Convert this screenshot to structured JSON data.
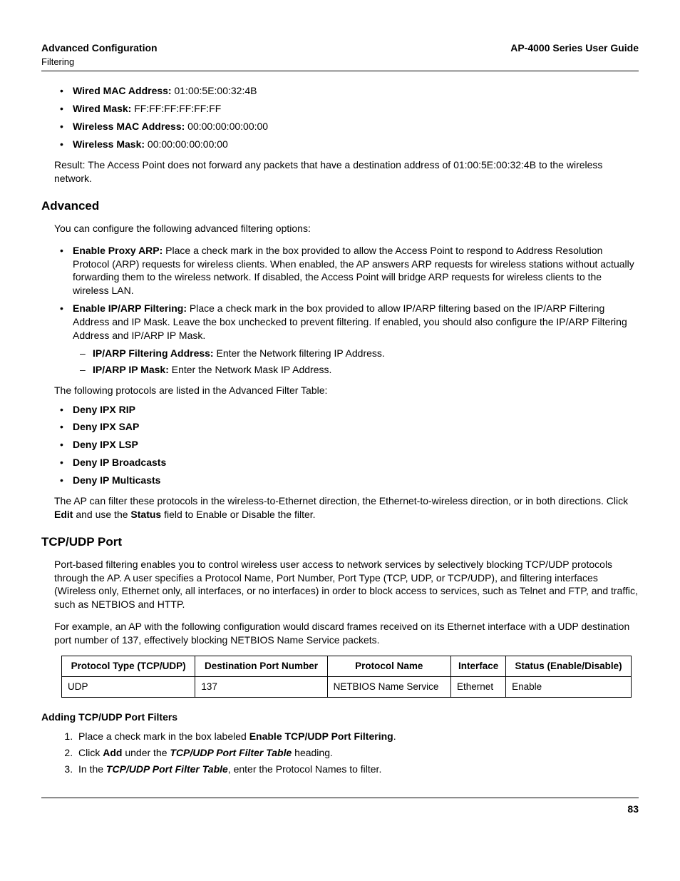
{
  "header": {
    "left_title": "Advanced Configuration",
    "left_sub": "Filtering",
    "right_title": "AP-4000 Series User Guide"
  },
  "mac_list": {
    "wired_mac_label": "Wired MAC Address:",
    "wired_mac_value": " 01:00:5E:00:32:4B",
    "wired_mask_label": "Wired Mask:",
    "wired_mask_value": " FF:FF:FF:FF:FF:FF",
    "wireless_mac_label": "Wireless MAC Address:",
    "wireless_mac_value": " 00:00:00:00:00:00",
    "wireless_mask_label": "Wireless Mask:",
    "wireless_mask_value": " 00:00:00:00:00:00"
  },
  "result_text": "Result: The Access Point does not forward any packets that have a destination address of 01:00:5E:00:32:4B to the wireless network.",
  "advanced": {
    "heading": "Advanced",
    "intro": "You can configure the following advanced filtering options:",
    "proxy_label": "Enable Proxy ARP:",
    "proxy_text": " Place a check mark in the box provided to allow the Access Point to respond to Address Resolution Protocol (ARP) requests for wireless clients. When enabled, the AP answers ARP requests for wireless stations without actually forwarding them to the wireless network. If disabled, the Access Point will bridge ARP requests for wireless clients to the wireless LAN.",
    "iparp_label": "Enable IP/ARP Filtering:",
    "iparp_text": " Place a check mark in the box provided to allow IP/ARP filtering based on the IP/ARP Filtering Address and IP Mask. Leave the box unchecked to prevent filtering. If enabled, you should also configure the IP/ARP Filtering Address and IP/ARP IP Mask.",
    "iparp_addr_label": "IP/ARP Filtering Address:",
    "iparp_addr_text": " Enter the Network filtering IP Address.",
    "iparp_mask_label": "IP/ARP IP Mask:",
    "iparp_mask_text": " Enter the Network Mask IP Address.",
    "table_intro": "The following protocols are listed in the Advanced Filter Table:",
    "deny1": "Deny IPX RIP",
    "deny2": "Deny IPX SAP",
    "deny3": "Deny IPX LSP",
    "deny4": "Deny IP Broadcasts",
    "deny5": "Deny IP Multicasts",
    "filter_p1a": "The AP can filter these protocols in the wireless-to-Ethernet direction, the Ethernet-to-wireless direction, or in both directions. Click ",
    "filter_p1_edit": "Edit",
    "filter_p1b": " and use the ",
    "filter_p1_status": "Status",
    "filter_p1c": " field to Enable or Disable the filter."
  },
  "tcp": {
    "heading": "TCP/UDP Port",
    "p1": "Port-based filtering enables you to control wireless user access to network services by selectively blocking TCP/UDP protocols through the AP. A user specifies a Protocol Name, Port Number, Port Type (TCP, UDP, or TCP/UDP), and filtering interfaces (Wireless only, Ethernet only, all interfaces, or no interfaces) in order to block access to services, such as Telnet and FTP, and traffic, such as NETBIOS and HTTP.",
    "p2": "For example, an AP with the following configuration would discard frames received on its Ethernet interface with a UDP destination port number of 137, effectively blocking NETBIOS Name Service packets.",
    "table": {
      "h1": "Protocol Type (TCP/UDP)",
      "h2": "Destination Port Number",
      "h3": "Protocol Name",
      "h4": "Interface",
      "h5": "Status (Enable/Disable)",
      "r1c1": "UDP",
      "r1c2": "137",
      "r1c3": "NETBIOS Name Service",
      "r1c4": "Ethernet",
      "r1c5": "Enable"
    },
    "adding_heading": "Adding TCP/UDP Port Filters",
    "step1a": "Place a check mark in the box labeled ",
    "step1b": "Enable TCP/UDP Port Filtering",
    "step1c": ".",
    "step2a": "Click ",
    "step2b": "Add",
    "step2c": " under the ",
    "step2d": "TCP/UDP Port Filter Table",
    "step2e": " heading.",
    "step3a": "In the ",
    "step3b": "TCP/UDP Port Filter Table",
    "step3c": ", enter the Protocol Names to filter."
  },
  "page_number": "83"
}
